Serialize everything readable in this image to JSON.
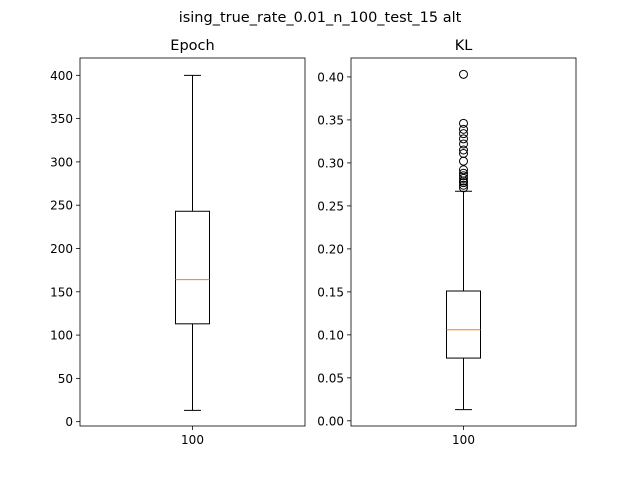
{
  "figure": {
    "suptitle": "ising_true_rate_0.01_n_100_test_15 alt"
  },
  "chart_data": [
    {
      "type": "boxplot",
      "title": "Epoch",
      "xlabel": "",
      "ylabel": "",
      "categories": [
        "100"
      ],
      "ylim": [
        -5,
        420
      ],
      "yticks": [
        0,
        50,
        100,
        150,
        200,
        250,
        300,
        350,
        400
      ],
      "ytick_labels": [
        "0",
        "50",
        "100",
        "150",
        "200",
        "250",
        "300",
        "350",
        "400"
      ],
      "box": {
        "whisker_low": 13,
        "q1": 113,
        "median": 164,
        "q3": 243,
        "whisker_high": 400
      },
      "outliers": [],
      "colors": {
        "box": "#000000",
        "median": "#ff7f0e"
      }
    },
    {
      "type": "boxplot",
      "title": "KL",
      "xlabel": "",
      "ylabel": "",
      "categories": [
        "100"
      ],
      "ylim": [
        -0.006,
        0.422
      ],
      "yticks": [
        0.0,
        0.05,
        0.1,
        0.15,
        0.2,
        0.25,
        0.3,
        0.35,
        0.4
      ],
      "ytick_labels": [
        "0.00",
        "0.05",
        "0.10",
        "0.15",
        "0.20",
        "0.25",
        "0.30",
        "0.35",
        "0.40"
      ],
      "box": {
        "whisker_low": 0.013,
        "q1": 0.073,
        "median": 0.106,
        "q3": 0.151,
        "whisker_high": 0.267
      },
      "outliers": [
        0.271,
        0.274,
        0.277,
        0.279,
        0.282,
        0.285,
        0.288,
        0.292,
        0.302,
        0.311,
        0.315,
        0.322,
        0.328,
        0.334,
        0.339,
        0.346,
        0.403
      ],
      "colors": {
        "box": "#000000",
        "median": "#ff7f0e"
      }
    }
  ]
}
